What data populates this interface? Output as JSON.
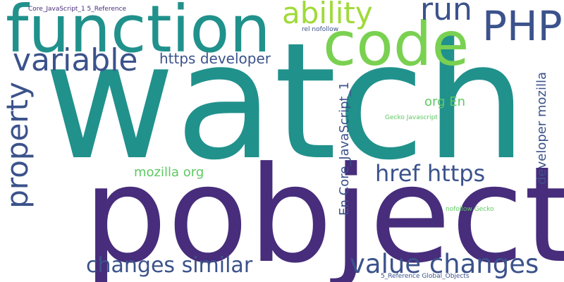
{
  "words": {
    "watch": {
      "text": "watch",
      "color": "#21918c"
    },
    "pobject": {
      "text": "pobject",
      "color": "#472d7b"
    },
    "function": {
      "text": "function",
      "color": "#21918c"
    },
    "code": {
      "text": "code",
      "color": "#7ad151"
    },
    "php": {
      "text": "PHP",
      "color": "#3b528b"
    },
    "ability": {
      "text": "ability",
      "color": "#a0da39"
    },
    "run": {
      "text": "run",
      "color": "#3b528b"
    },
    "variable": {
      "text": "variable",
      "color": "#3b528b"
    },
    "property": {
      "text": "property",
      "color": "#3b528b"
    },
    "https_developer": {
      "text": "https developer",
      "color": "#3b528b"
    },
    "org_en": {
      "text": "org En",
      "color": "#5ec962"
    },
    "href_https": {
      "text": "href https",
      "color": "#3b528b"
    },
    "mozilla_org": {
      "text": "mozilla org",
      "color": "#5ec962"
    },
    "en_core": {
      "text": "En Core_JavaScript_1",
      "color": "#3b528b"
    },
    "developer_mozilla": {
      "text": "developer mozilla",
      "color": "#3b528b"
    },
    "changes_similar": {
      "text": "changes similar",
      "color": "#3b528b"
    },
    "value_changes": {
      "text": "value changes",
      "color": "#3b528b"
    },
    "core_ref": {
      "text": "Core_JavaScript_1 5_Reference",
      "color": "#472d7b"
    },
    "rel_nofollow": {
      "text": "rel nofollow",
      "color": "#3b528b"
    },
    "gecko_javascript": {
      "text": "Gecko Javascript",
      "color": "#5ec962"
    },
    "nofollow_gecko": {
      "text": "nofollow Gecko",
      "color": "#5ec962"
    },
    "ref_global": {
      "text": "5_Reference Global_Objects",
      "color": "#3b528b"
    }
  }
}
